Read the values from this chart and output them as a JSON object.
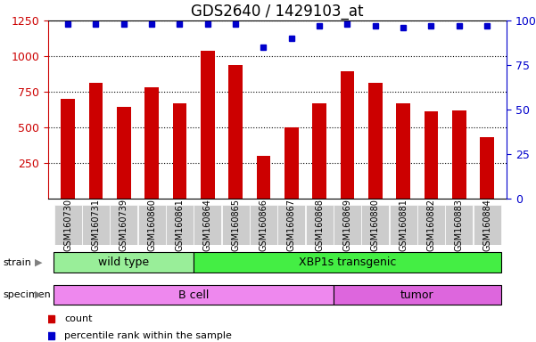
{
  "title": "GDS2640 / 1429103_at",
  "samples": [
    "GSM160730",
    "GSM160731",
    "GSM160739",
    "GSM160860",
    "GSM160861",
    "GSM160864",
    "GSM160865",
    "GSM160866",
    "GSM160867",
    "GSM160868",
    "GSM160869",
    "GSM160880",
    "GSM160881",
    "GSM160882",
    "GSM160883",
    "GSM160884"
  ],
  "counts": [
    700,
    810,
    645,
    780,
    670,
    1040,
    935,
    300,
    500,
    665,
    895,
    815,
    665,
    610,
    615,
    430
  ],
  "percentiles": [
    98,
    98,
    98,
    98,
    98,
    98,
    98,
    85,
    90,
    97,
    98,
    97,
    96,
    97,
    97,
    97
  ],
  "bar_color": "#cc0000",
  "dot_color": "#0000cc",
  "ylim_left": [
    0,
    1250
  ],
  "ylim_right": [
    0,
    100
  ],
  "yticks_left": [
    250,
    500,
    750,
    1000,
    1250
  ],
  "yticks_right": [
    0,
    25,
    50,
    75,
    100
  ],
  "strain_groups": [
    {
      "label": "wild type",
      "start": 0,
      "end": 5,
      "color": "#99ee99"
    },
    {
      "label": "XBP1s transgenic",
      "start": 5,
      "end": 16,
      "color": "#44ee44"
    }
  ],
  "specimen_groups": [
    {
      "label": "B cell",
      "start": 0,
      "end": 10,
      "color": "#ee88ee"
    },
    {
      "label": "tumor",
      "start": 10,
      "end": 16,
      "color": "#dd66dd"
    }
  ],
  "legend_items": [
    {
      "label": "count",
      "color": "#cc0000"
    },
    {
      "label": "percentile rank within the sample",
      "color": "#0000cc"
    }
  ],
  "background_color": "#ffffff",
  "tick_color_left": "#cc0000",
  "tick_color_right": "#0000cc",
  "grid_color": "#000000",
  "title_fontsize": 12,
  "axis_fontsize": 9,
  "ticklabel_bg": "#cccccc"
}
